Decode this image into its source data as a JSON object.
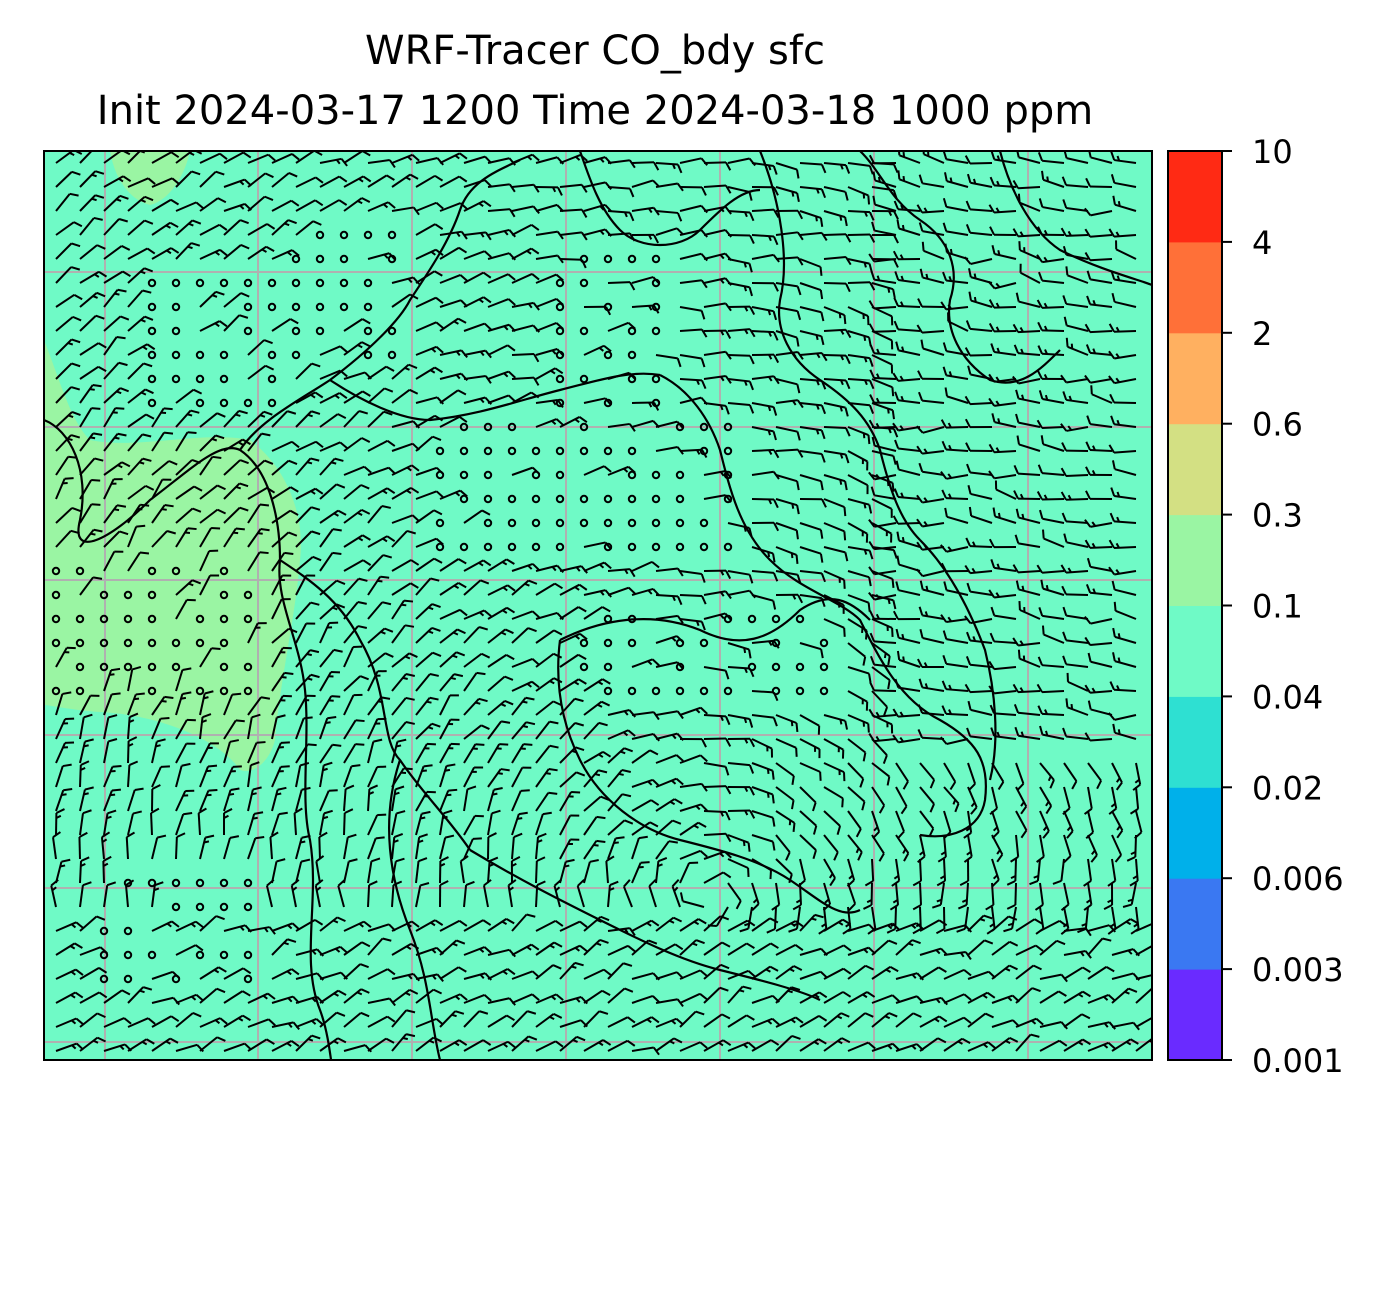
{
  "title": {
    "line1": "WRF-Tracer CO_bdy sfc",
    "line2": "Init 2024-03-17 1200 Time 2024-03-18 1000 ppm"
  },
  "colorbar": {
    "levels": [
      0.001,
      0.003,
      0.006,
      0.02,
      0.04,
      0.1,
      0.3,
      0.6,
      2,
      4,
      10
    ],
    "tick_labels": [
      "0.001",
      "0.003",
      "0.006",
      "0.02",
      "0.04",
      "0.1",
      "0.3",
      "0.6",
      "2",
      "4",
      "10"
    ],
    "colors": [
      "#6a2bff",
      "#3a78f2",
      "#00b0ea",
      "#2ee0d2",
      "#6ffac6",
      "#9af5a3",
      "#d3e083",
      "#ffb060",
      "#ff7038",
      "#ff2a14"
    ]
  },
  "map": {
    "background_color": "#6ffac6",
    "plume_color": "#9af5a3",
    "gridline_color": "#b0b0b0",
    "coastline_color": "#000000",
    "barb_color": "#000000"
  }
}
